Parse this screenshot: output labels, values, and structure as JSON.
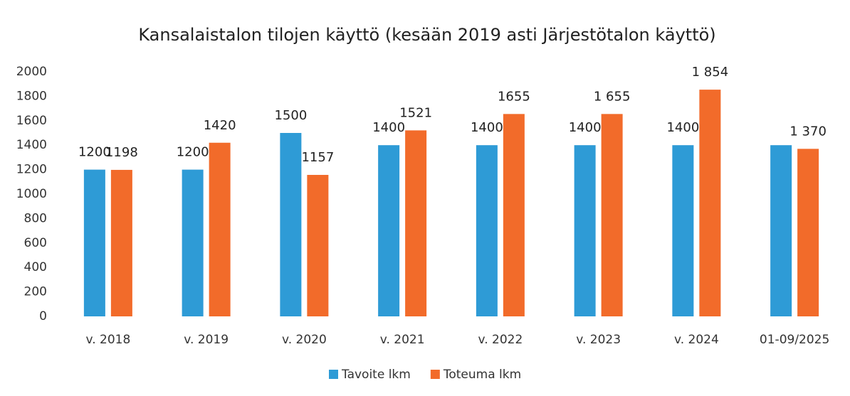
{
  "chart_data": {
    "type": "bar",
    "title": "Kansalaistalon tilojen käyttö (kesään 2019 asti Järjestötalon käyttö)",
    "categories": [
      "v. 2018",
      "v. 2019",
      "v. 2020",
      "v. 2021",
      "v. 2022",
      "v. 2023",
      "v. 2024",
      "01-09/2025"
    ],
    "series": [
      {
        "name": "Tavoite lkm",
        "color": "#2e9bd6",
        "values": [
          1200,
          1200,
          1500,
          1400,
          1400,
          1400,
          1400,
          1400
        ],
        "value_labels": [
          "1200",
          "1200",
          "1500",
          "1400",
          "1400",
          "1400",
          "1400",
          null
        ]
      },
      {
        "name": "Toteuma lkm",
        "color": "#f26b2a",
        "values": [
          1198,
          1420,
          1157,
          1521,
          1655,
          1655,
          1854,
          1370
        ],
        "value_labels": [
          "1198",
          "1420",
          "1157",
          "1521",
          "1655",
          "1 655",
          "1 854",
          "1 370"
        ]
      }
    ],
    "ylim": [
      0,
      2000
    ],
    "yticks": [
      0,
      200,
      400,
      600,
      800,
      1000,
      1200,
      1400,
      1600,
      1800,
      2000
    ],
    "grid": false,
    "legend": "bottom"
  }
}
